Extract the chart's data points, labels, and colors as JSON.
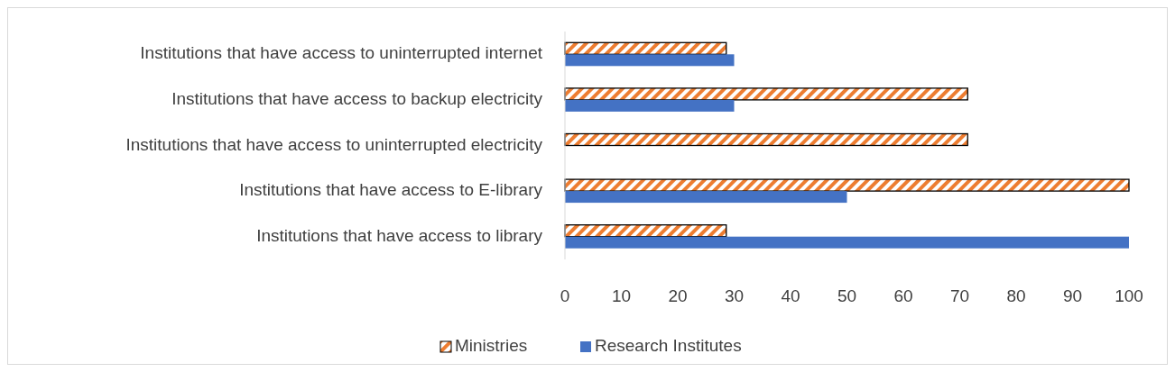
{
  "chart_data": {
    "type": "bar",
    "orientation": "horizontal",
    "categories": [
      "Institutions that have access to uninterrupted internet",
      "Institutions that have access to backup electricity",
      "Institutions that have access to uninterrupted electricity",
      "Institutions that have access to E-library",
      "Institutions that have access to library"
    ],
    "series": [
      {
        "name": "Ministries",
        "color": "#ed7d31",
        "values": [
          28.6,
          71.4,
          71.4,
          100,
          28.6
        ]
      },
      {
        "name": "Research Institutes",
        "color": "#4472c4",
        "values": [
          30,
          30,
          0,
          50,
          100
        ]
      }
    ],
    "xlim": [
      0,
      100
    ],
    "xticks": [
      0,
      10,
      20,
      30,
      40,
      50,
      60,
      70,
      80,
      90,
      100
    ],
    "grid": false,
    "legend": "bottom"
  }
}
